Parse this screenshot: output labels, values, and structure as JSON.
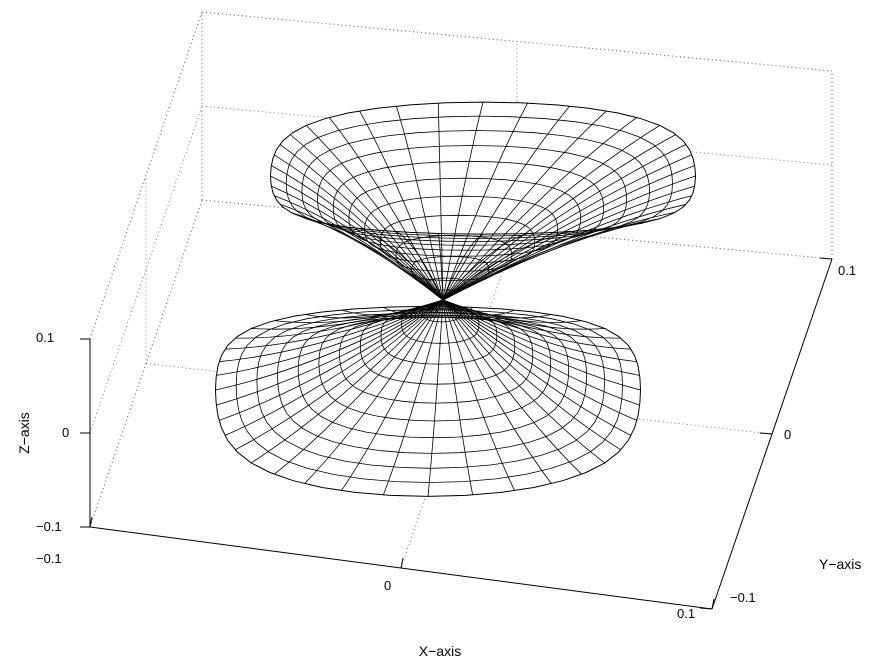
{
  "chart_data": {
    "type": "surface",
    "title": "",
    "xlabel": "X−axis",
    "ylabel": "Y−axis",
    "zlabel": "Z−axis",
    "x_ticks": [
      "−0.1",
      "0",
      "0.1"
    ],
    "y_ticks": [
      "−0.1",
      "0",
      "0.1"
    ],
    "z_ticks": [
      "−0.1",
      "0",
      "0.1"
    ],
    "xlim": [
      -0.1,
      0.1
    ],
    "ylim": [
      -0.1,
      0.1
    ],
    "zlim": [
      -0.1,
      0.1
    ],
    "grid": true,
    "surface": "double-lobed wireframe mesh (upper and lower lobes meeting at origin)",
    "mesh_color": "#000000",
    "face_color": "#ffffff"
  }
}
